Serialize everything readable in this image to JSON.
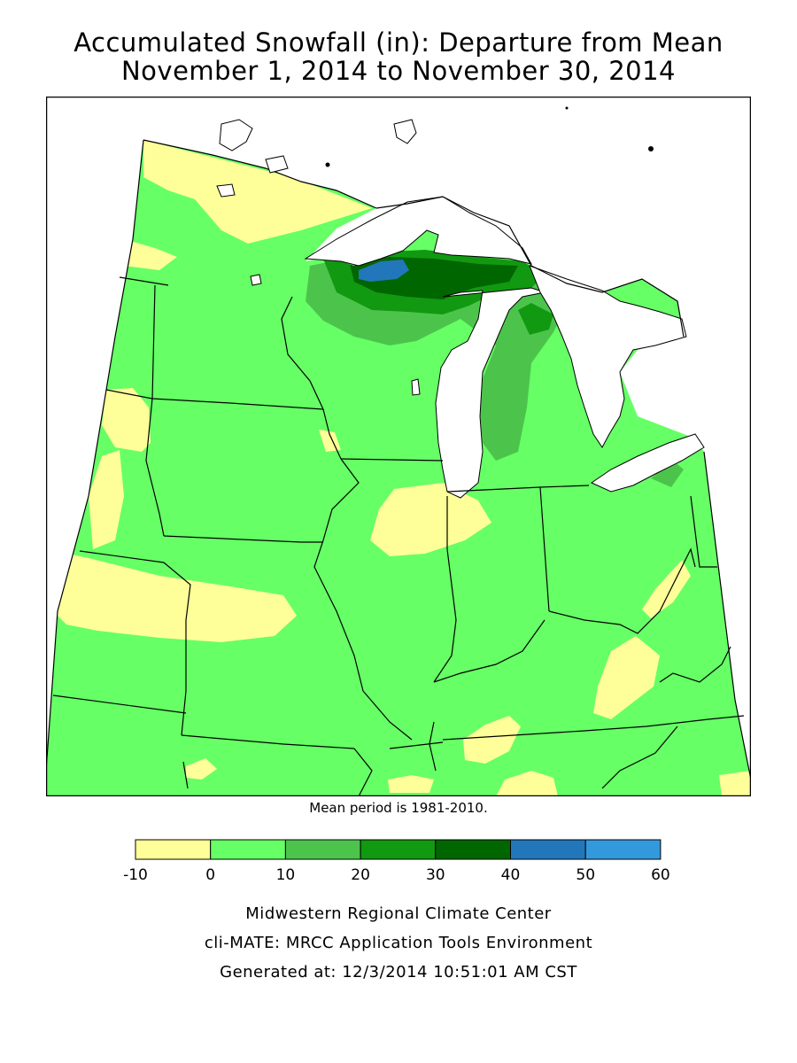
{
  "title": {
    "line1": "Accumulated Snowfall (in): Departure from Mean",
    "line2": "November 1, 2014 to November 30, 2014"
  },
  "map": {
    "region": "Midwest United States",
    "colors": {
      "water": "#ffffff",
      "neg10_0": "#ffff99",
      "0_10": "#66ff66",
      "10_20": "#4cc44c",
      "20_30": "#119911",
      "30_40": "#006600",
      "40_50": "#2277bb",
      "50_60": "#3399dd"
    }
  },
  "note": "Mean period is 1981-2010.",
  "legend": {
    "ticks": [
      "-10",
      "0",
      "10",
      "20",
      "30",
      "40",
      "50",
      "60"
    ],
    "colors": [
      "#ffff99",
      "#66ff66",
      "#4cc44c",
      "#119911",
      "#006600",
      "#2277bb",
      "#3399dd"
    ]
  },
  "credits": {
    "line1": "Midwestern Regional Climate Center",
    "line2": "cli-MATE: MRCC Application Tools Environment",
    "line3": "Generated at: 12/3/2014 10:51:01 AM CST"
  }
}
